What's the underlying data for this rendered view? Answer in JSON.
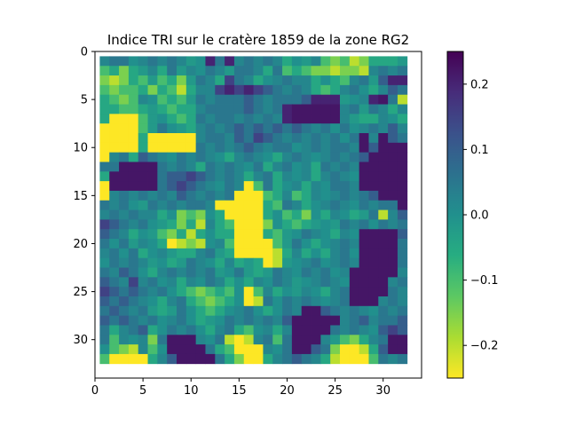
{
  "chart_data": {
    "type": "heatmap",
    "title": "Indice TRI sur le cratère 1859 de la zone RG2",
    "xlabel": "",
    "ylabel": "",
    "colormap": "viridis_r",
    "vmin": -0.25,
    "vmax": 0.25,
    "x_range": [
      0,
      34
    ],
    "y_range": [
      34,
      0
    ],
    "x_ticks": [
      0,
      5,
      10,
      15,
      20,
      25,
      30
    ],
    "y_ticks": [
      0,
      5,
      10,
      15,
      20,
      25,
      30
    ],
    "colorbar_ticks": [
      0.2,
      0.1,
      0.0,
      -0.1,
      -0.2
    ],
    "colorbar_tick_labels": [
      "0.2",
      "0.1",
      "0.0",
      "−0.1",
      "−0.2"
    ],
    "grid_origin": [
      1,
      1
    ],
    "grid_size": 32,
    "values": [
      [
        0.02,
        0.05,
        0.05,
        0.0,
        0.02,
        0.05,
        0.02,
        0.05,
        0.02,
        -0.02,
        0.0,
        0.2,
        0.05,
        0.2,
        0.02,
        0.05,
        0.02,
        0.05,
        0.02,
        -0.05,
        0.0,
        -0.02,
        0.02,
        -0.1,
        -0.15,
        -0.1,
        -0.2,
        -0.15,
        -0.05,
        -0.05,
        -0.05,
        -0.02
      ],
      [
        -0.1,
        -0.05,
        -0.15,
        -0.05,
        -0.02,
        0.02,
        -0.05,
        0.05,
        -0.02,
        0.02,
        0.0,
        0.05,
        0.02,
        -0.02,
        0.05,
        0.05,
        0.02,
        -0.05,
        0.05,
        -0.1,
        -0.05,
        -0.1,
        -0.15,
        -0.15,
        -0.2,
        -0.15,
        -0.15,
        -0.2,
        0.02,
        0.05,
        0.02,
        0.05
      ],
      [
        -0.15,
        -0.2,
        -0.15,
        -0.05,
        -0.1,
        -0.02,
        -0.1,
        -0.05,
        -0.15,
        -0.02,
        0.05,
        0.02,
        -0.05,
        0.15,
        0.05,
        0.02,
        -0.05,
        0.0,
        0.02,
        0.05,
        0.02,
        0.02,
        -0.05,
        0.0,
        -0.05,
        -0.1,
        0.02,
        0.05,
        -0.02,
        0.1,
        0.2,
        0.2
      ],
      [
        -0.1,
        -0.15,
        -0.1,
        -0.1,
        -0.05,
        -0.15,
        -0.05,
        -0.1,
        -0.2,
        -0.05,
        0.02,
        0.02,
        0.15,
        0.2,
        0.15,
        0.2,
        0.15,
        0.1,
        0.05,
        0.02,
        0.05,
        0.02,
        -0.05,
        -0.1,
        -0.05,
        0.02,
        0.05,
        0.0,
        -0.05,
        0.02,
        0.1,
        0.05
      ],
      [
        -0.05,
        -0.1,
        -0.15,
        -0.1,
        0.02,
        0.0,
        -0.1,
        -0.05,
        -0.1,
        -0.02,
        0.05,
        0.02,
        0.05,
        0.05,
        0.05,
        0.1,
        0.05,
        0.02,
        0.05,
        0.05,
        0.05,
        0.1,
        0.2,
        0.2,
        0.2,
        -0.02,
        0.0,
        0.02,
        0.2,
        0.22,
        0.05,
        -0.2
      ],
      [
        -0.05,
        -0.05,
        -0.1,
        -0.1,
        -0.05,
        -0.02,
        -0.05,
        -0.1,
        -0.05,
        -0.05,
        0.02,
        0.05,
        0.05,
        0.05,
        0.05,
        0.1,
        0.05,
        0.02,
        0.05,
        0.2,
        0.22,
        0.22,
        0.22,
        0.22,
        0.22,
        0.02,
        0.05,
        -0.02,
        0.05,
        0.02,
        -0.05,
        0.02
      ],
      [
        -0.05,
        -0.25,
        -0.25,
        -0.25,
        -0.1,
        -0.02,
        0.0,
        -0.05,
        -0.1,
        -0.05,
        0.05,
        0.02,
        0.05,
        0.05,
        0.02,
        0.05,
        0.02,
        0.05,
        0.02,
        0.2,
        0.22,
        0.22,
        0.22,
        0.22,
        0.22,
        0.02,
        -0.02,
        -0.05,
        -0.05,
        0.02,
        0.0,
        -0.05
      ],
      [
        -0.25,
        -0.25,
        -0.25,
        -0.25,
        -0.1,
        -0.02,
        0.05,
        0.0,
        -0.02,
        -0.05,
        0.02,
        0.05,
        0.02,
        0.05,
        0.1,
        0.05,
        0.1,
        0.05,
        0.1,
        0.05,
        0.1,
        0.05,
        0.02,
        0.05,
        0.0,
        0.05,
        0.0,
        0.02,
        0.05,
        0.02,
        0.1,
        0.02
      ],
      [
        -0.25,
        -0.25,
        -0.25,
        -0.25,
        -0.05,
        -0.25,
        -0.25,
        -0.25,
        -0.25,
        -0.25,
        0.02,
        0.05,
        0.05,
        0.02,
        0.1,
        0.05,
        0.15,
        0.1,
        0.05,
        0.02,
        0.05,
        0.02,
        0.05,
        0.02,
        0.05,
        0.0,
        0.05,
        0.22,
        0.02,
        0.22,
        0.1,
        0.05
      ],
      [
        -0.25,
        -0.25,
        -0.25,
        -0.25,
        -0.05,
        -0.25,
        -0.25,
        -0.25,
        -0.25,
        -0.25,
        0.05,
        0.02,
        0.05,
        0.02,
        0.05,
        0.1,
        0.05,
        0.02,
        0.05,
        0.05,
        0.0,
        0.02,
        0.05,
        0.02,
        0.05,
        0.05,
        0.02,
        0.22,
        0.1,
        0.22,
        0.22,
        0.22
      ],
      [
        -0.25,
        0.02,
        0.05,
        -0.05,
        0.1,
        0.05,
        0.02,
        0.0,
        0.05,
        0.02,
        0.05,
        0.02,
        0.0,
        -0.05,
        0.02,
        0.05,
        0.02,
        0.0,
        -0.05,
        0.02,
        0.05,
        0.02,
        0.0,
        0.02,
        0.05,
        0.02,
        0.05,
        0.1,
        0.22,
        0.22,
        0.22,
        0.22
      ],
      [
        0.05,
        0.05,
        0.22,
        0.22,
        0.22,
        0.22,
        0.05,
        0.02,
        0.05,
        0.02,
        -0.05,
        0.05,
        0.02,
        0.05,
        0.02,
        0.0,
        0.05,
        -0.05,
        0.02,
        0.05,
        0.0,
        0.02,
        -0.05,
        0.05,
        0.02,
        0.05,
        0.02,
        0.22,
        0.22,
        0.22,
        0.22,
        0.22
      ],
      [
        -0.05,
        0.22,
        0.22,
        0.22,
        0.22,
        0.22,
        0.05,
        0.1,
        0.1,
        0.15,
        0.1,
        0.05,
        0.02,
        0.05,
        0.02,
        -0.05,
        0.02,
        0.05,
        -0.05,
        0.02,
        0.0,
        0.02,
        -0.05,
        0.02,
        0.05,
        0.02,
        0.0,
        0.22,
        0.22,
        0.22,
        0.22,
        0.22
      ],
      [
        -0.25,
        0.22,
        0.22,
        0.22,
        0.22,
        0.22,
        0.05,
        0.1,
        0.15,
        0.1,
        0.05,
        0.02,
        0.0,
        0.05,
        0.02,
        -0.25,
        -0.1,
        0.05,
        -0.05,
        0.0,
        0.02,
        -0.05,
        0.02,
        0.0,
        0.05,
        0.05,
        0.02,
        0.22,
        0.22,
        0.22,
        0.22,
        0.22
      ],
      [
        -0.25,
        0.02,
        0.05,
        0.02,
        0.05,
        0.02,
        0.05,
        0.02,
        0.1,
        0.05,
        0.02,
        0.05,
        0.02,
        0.05,
        -0.25,
        -0.25,
        -0.25,
        -0.1,
        -0.05,
        0.02,
        -0.1,
        -0.05,
        0.02,
        0.0,
        0.02,
        0.05,
        0.02,
        0.05,
        0.1,
        0.22,
        0.22,
        0.22
      ],
      [
        0.05,
        0.02,
        0.05,
        0.0,
        -0.02,
        0.05,
        0.02,
        0.05,
        0.02,
        0.05,
        0.05,
        0.02,
        -0.25,
        -0.25,
        -0.25,
        -0.25,
        -0.25,
        -0.05,
        -0.1,
        0.05,
        0.02,
        -0.05,
        0.0,
        0.02,
        0.05,
        0.02,
        0.0,
        0.05,
        0.02,
        0.05,
        0.05,
        0.22
      ],
      [
        0.02,
        0.05,
        0.02,
        0.05,
        0.02,
        0.02,
        -0.05,
        0.0,
        -0.15,
        -0.1,
        -0.15,
        0.0,
        -0.05,
        -0.25,
        -0.25,
        -0.25,
        -0.25,
        -0.05,
        0.0,
        -0.1,
        -0.05,
        -0.15,
        0.0,
        -0.05,
        0.02,
        0.0,
        -0.05,
        -0.02,
        0.05,
        -0.2,
        0.02,
        0.1
      ],
      [
        0.15,
        0.1,
        0.05,
        0.02,
        0.05,
        0.0,
        -0.02,
        -0.05,
        -0.15,
        -0.05,
        -0.2,
        0.02,
        -0.05,
        -0.1,
        -0.25,
        -0.25,
        -0.25,
        -0.15,
        0.0,
        -0.05,
        -0.1,
        -0.05,
        -0.02,
        0.0,
        -0.02,
        0.05,
        0.02,
        0.05,
        0.0,
        0.05,
        0.02,
        0.05
      ],
      [
        0.1,
        0.05,
        0.02,
        -0.05,
        0.0,
        -0.02,
        -0.1,
        -0.15,
        -0.05,
        -0.2,
        -0.05,
        0.0,
        -0.05,
        -0.05,
        -0.25,
        -0.25,
        -0.25,
        -0.05,
        -0.1,
        -0.02,
        0.0,
        0.05,
        0.02,
        0.0,
        -0.05,
        0.02,
        0.0,
        0.22,
        0.22,
        0.22,
        0.22,
        0.1
      ],
      [
        0.05,
        0.0,
        0.05,
        -0.02,
        0.02,
        0.0,
        -0.05,
        -0.25,
        -0.2,
        -0.15,
        -0.2,
        0.0,
        0.02,
        -0.1,
        -0.25,
        -0.25,
        -0.25,
        -0.25,
        -0.1,
        -0.02,
        0.05,
        0.0,
        -0.05,
        0.0,
        0.02,
        0.05,
        0.02,
        0.22,
        0.22,
        0.22,
        0.22,
        0.05
      ],
      [
        0.02,
        0.05,
        0.0,
        0.05,
        -0.05,
        0.0,
        0.02,
        -0.02,
        -0.05,
        -0.05,
        0.02,
        0.05,
        -0.02,
        -0.05,
        -0.25,
        -0.25,
        -0.25,
        -0.25,
        -0.2,
        -0.05,
        0.02,
        -0.05,
        0.0,
        -0.05,
        0.02,
        0.05,
        0.0,
        0.22,
        0.22,
        0.22,
        0.22,
        0.05
      ],
      [
        0.0,
        0.05,
        0.02,
        0.05,
        0.02,
        -0.02,
        0.0,
        -0.05,
        -0.02,
        0.05,
        0.02,
        0.0,
        -0.05,
        0.02,
        -0.05,
        -0.02,
        -0.05,
        -0.25,
        -0.2,
        -0.02,
        0.0,
        0.02,
        0.05,
        0.0,
        0.02,
        0.05,
        0.02,
        0.22,
        0.22,
        0.22,
        0.22,
        0.05
      ],
      [
        0.05,
        0.02,
        0.1,
        0.05,
        0.0,
        -0.05,
        0.02,
        0.05,
        0.02,
        0.05,
        0.02,
        0.05,
        -0.02,
        0.0,
        0.05,
        -0.02,
        -0.05,
        -0.02,
        0.05,
        0.02,
        0.0,
        0.05,
        0.02,
        0.05,
        0.0,
        0.02,
        0.22,
        0.22,
        0.22,
        0.22,
        0.22,
        0.02
      ],
      [
        0.1,
        0.05,
        0.02,
        0.15,
        0.02,
        0.05,
        0.0,
        0.02,
        -0.05,
        0.02,
        0.0,
        0.05,
        0.02,
        -0.05,
        0.0,
        -0.05,
        0.02,
        0.0,
        0.05,
        0.02,
        -0.02,
        0.0,
        0.02,
        0.05,
        0.02,
        0.0,
        0.22,
        0.22,
        0.22,
        0.22,
        0.02,
        0.05
      ],
      [
        0.15,
        0.1,
        0.05,
        0.1,
        0.05,
        0.02,
        0.05,
        0.0,
        -0.05,
        -0.1,
        -0.15,
        -0.1,
        -0.05,
        -0.1,
        0.0,
        -0.25,
        -0.1,
        0.02,
        -0.05,
        0.0,
        -0.02,
        0.02,
        0.0,
        -0.05,
        0.02,
        0.05,
        0.22,
        0.22,
        0.22,
        0.22,
        0.05,
        0.02
      ],
      [
        0.1,
        0.05,
        0.1,
        0.05,
        0.02,
        0.0,
        -0.05,
        0.02,
        0.05,
        -0.05,
        -0.1,
        -0.15,
        -0.1,
        -0.05,
        0.0,
        -0.25,
        -0.2,
        0.05,
        0.0,
        0.05,
        0.02,
        0.05,
        0.02,
        0.0,
        0.02,
        0.05,
        0.22,
        0.22,
        0.22,
        0.02,
        0.05,
        0.02
      ],
      [
        0.05,
        0.1,
        0.05,
        0.02,
        0.05,
        -0.02,
        -0.05,
        -0.02,
        0.05,
        0.0,
        -0.05,
        -0.1,
        -0.05,
        0.0,
        0.02,
        0.05,
        0.0,
        -0.05,
        0.0,
        0.05,
        0.02,
        0.22,
        0.22,
        0.1,
        0.05,
        0.02,
        0.05,
        0.02,
        0.0,
        0.05,
        0.02,
        0.05
      ],
      [
        0.1,
        0.05,
        0.1,
        0.05,
        0.02,
        0.05,
        0.0,
        0.02,
        0.05,
        0.0,
        -0.05,
        -0.02,
        0.0,
        0.05,
        0.02,
        0.05,
        0.02,
        0.05,
        0.02,
        0.1,
        0.22,
        0.22,
        0.22,
        0.22,
        0.22,
        0.02,
        0.05,
        0.1,
        0.02,
        0.05,
        0.05,
        0.1
      ],
      [
        0.05,
        -0.05,
        0.02,
        0.05,
        0.1,
        -0.05,
        0.0,
        0.05,
        0.02,
        0.05,
        0.0,
        -0.05,
        0.02,
        0.05,
        -0.05,
        -0.1,
        0.0,
        0.02,
        -0.05,
        0.02,
        0.22,
        0.22,
        0.22,
        0.22,
        0.05,
        0.02,
        0.05,
        0.02,
        0.0,
        0.1,
        0.15,
        0.1
      ],
      [
        0.05,
        -0.1,
        0.02,
        0.0,
        0.02,
        -0.15,
        0.05,
        0.22,
        0.22,
        0.22,
        0.02,
        0.0,
        0.05,
        -0.2,
        -0.25,
        -0.2,
        0.02,
        0.05,
        -0.1,
        0.05,
        0.22,
        0.22,
        0.22,
        0.02,
        -0.02,
        -0.1,
        -0.15,
        -0.05,
        0.02,
        0.05,
        0.22,
        0.22
      ],
      [
        0.0,
        -0.1,
        -0.15,
        -0.2,
        0.02,
        -0.1,
        0.0,
        0.22,
        0.22,
        0.22,
        0.22,
        0.05,
        -0.05,
        -0.1,
        -0.25,
        -0.25,
        -0.25,
        0.02,
        0.0,
        0.05,
        0.22,
        0.22,
        0.1,
        0.05,
        -0.15,
        -0.25,
        -0.25,
        -0.2,
        -0.05,
        0.1,
        0.22,
        0.22
      ],
      [
        -0.1,
        -0.25,
        -0.25,
        -0.25,
        -0.25,
        -0.05,
        0.02,
        0.1,
        0.22,
        0.22,
        0.22,
        0.22,
        0.05,
        -0.05,
        -0.15,
        -0.25,
        -0.25,
        -0.05,
        0.02,
        0.05,
        0.1,
        0.05,
        0.02,
        -0.05,
        -0.2,
        -0.25,
        -0.25,
        -0.25,
        -0.1,
        0.05,
        0.02,
        0.05
      ]
    ]
  }
}
